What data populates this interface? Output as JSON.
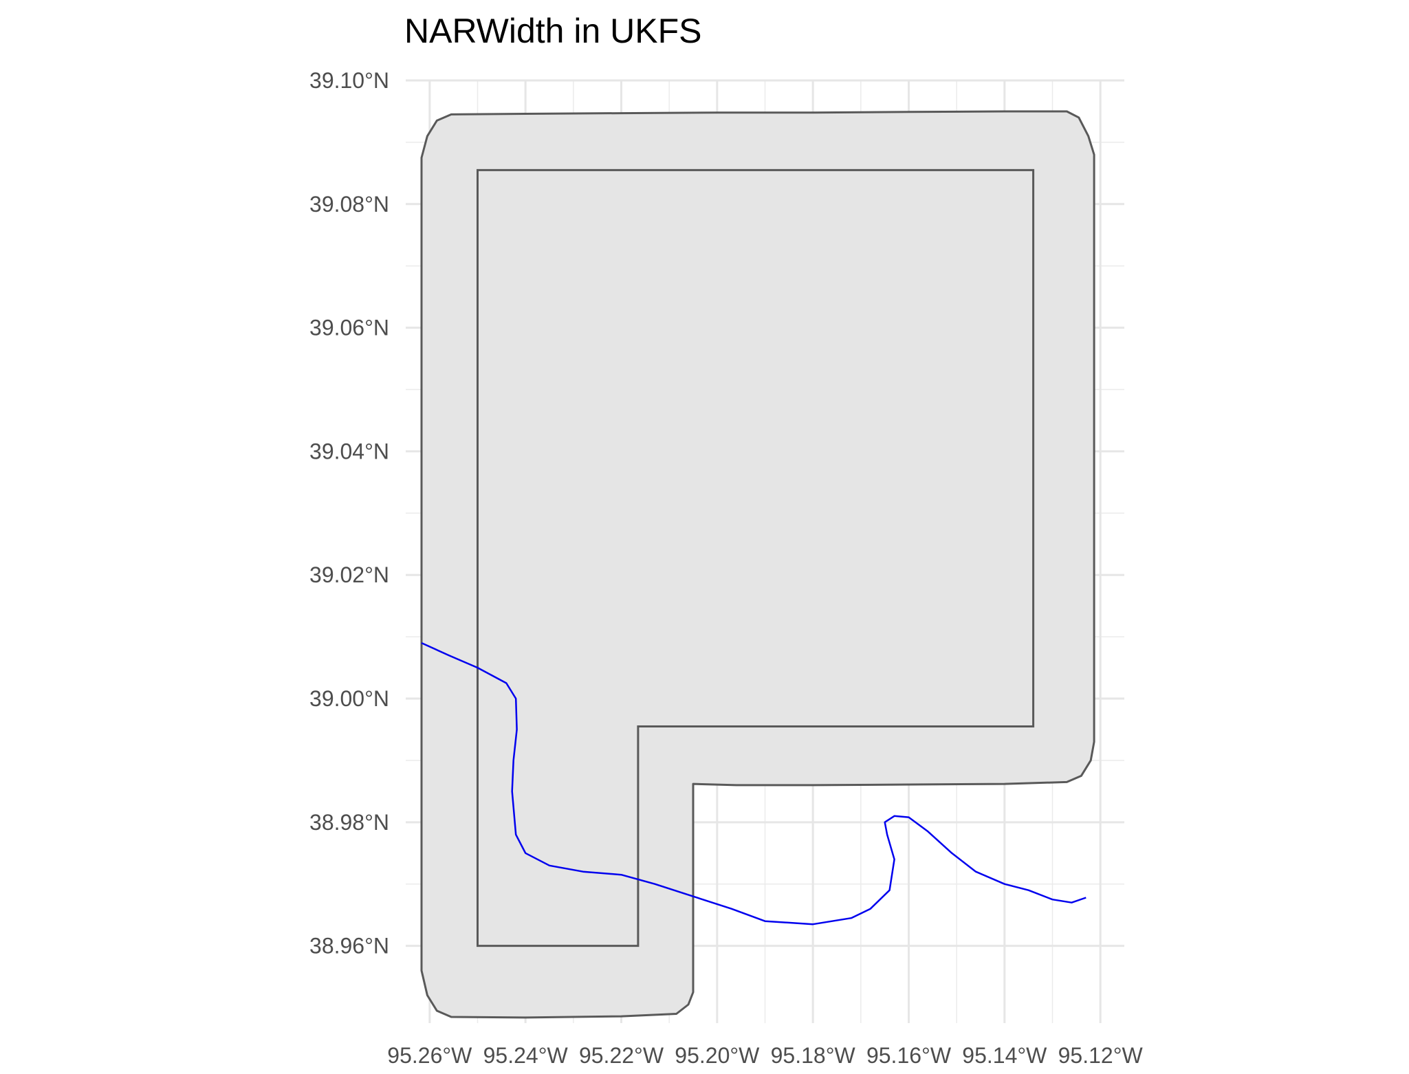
{
  "chart_data": {
    "type": "map",
    "title": "NARWidth in UKFS",
    "xlabel": "",
    "ylabel": "",
    "xlim": [
      -95.265,
      -95.115
    ],
    "ylim": [
      38.9475,
      39.1
    ],
    "grid": true,
    "x_ticks": [
      {
        "value": -95.26,
        "label": "95.26°W"
      },
      {
        "value": -95.24,
        "label": "95.24°W"
      },
      {
        "value": -95.22,
        "label": "95.22°W"
      },
      {
        "value": -95.2,
        "label": "95.20°W"
      },
      {
        "value": -95.18,
        "label": "95.18°W"
      },
      {
        "value": -95.16,
        "label": "95.16°W"
      },
      {
        "value": -95.14,
        "label": "95.14°W"
      },
      {
        "value": -95.12,
        "label": "95.12°W"
      }
    ],
    "y_ticks": [
      {
        "value": 39.1,
        "label": "39.10°N"
      },
      {
        "value": 39.08,
        "label": "39.08°N"
      },
      {
        "value": 39.06,
        "label": "39.06°N"
      },
      {
        "value": 39.04,
        "label": "39.04°N"
      },
      {
        "value": 39.02,
        "label": "39.02°N"
      },
      {
        "value": 39.0,
        "label": "39.00°N"
      },
      {
        "value": 38.98,
        "label": "38.98°N"
      },
      {
        "value": 38.96,
        "label": "38.96°N"
      }
    ],
    "buffer_polygon": {
      "fill": "#e5e5e5",
      "stroke": "#595959",
      "coords": [
        [
          -95.2617,
          39.0875
        ],
        [
          -95.2605,
          39.091
        ],
        [
          -95.2585,
          39.0935
        ],
        [
          -95.2555,
          39.0945
        ],
        [
          -95.24,
          39.0946
        ],
        [
          -95.22,
          39.0947
        ],
        [
          -95.2,
          39.0948
        ],
        [
          -95.18,
          39.0948
        ],
        [
          -95.16,
          39.0949
        ],
        [
          -95.14,
          39.095
        ],
        [
          -95.127,
          39.095
        ],
        [
          -95.1245,
          39.094
        ],
        [
          -95.1225,
          39.091
        ],
        [
          -95.1213,
          39.088
        ],
        [
          -95.1213,
          38.993
        ],
        [
          -95.122,
          38.99
        ],
        [
          -95.124,
          38.9875
        ],
        [
          -95.127,
          38.9865
        ],
        [
          -95.14,
          38.9862
        ],
        [
          -95.16,
          38.9861
        ],
        [
          -95.18,
          38.986
        ],
        [
          -95.196,
          38.986
        ],
        [
          -95.205,
          38.9862
        ],
        [
          -95.205,
          38.9525
        ],
        [
          -95.206,
          38.9505
        ],
        [
          -95.2085,
          38.949
        ],
        [
          -95.22,
          38.9486
        ],
        [
          -95.24,
          38.9484
        ],
        [
          -95.2555,
          38.9485
        ],
        [
          -95.2585,
          38.9495
        ],
        [
          -95.2605,
          38.952
        ],
        [
          -95.2617,
          38.956
        ]
      ]
    },
    "region_polygon": {
      "fill": "none",
      "stroke": "#595959",
      "coords": [
        [
          -95.25,
          39.0855
        ],
        [
          -95.134,
          39.0855
        ],
        [
          -95.134,
          38.9955
        ],
        [
          -95.2165,
          38.9955
        ],
        [
          -95.2165,
          38.96
        ],
        [
          -95.25,
          38.96
        ]
      ]
    },
    "river": {
      "color": "#0000ee",
      "coords": [
        [
          -95.2617,
          39.009
        ],
        [
          -95.256,
          39.007
        ],
        [
          -95.25,
          39.005
        ],
        [
          -95.244,
          39.0025
        ],
        [
          -95.242,
          39.0
        ],
        [
          -95.2418,
          38.995
        ],
        [
          -95.2425,
          38.99
        ],
        [
          -95.2428,
          38.985
        ],
        [
          -95.242,
          38.978
        ],
        [
          -95.24,
          38.975
        ],
        [
          -95.235,
          38.973
        ],
        [
          -95.228,
          38.972
        ],
        [
          -95.22,
          38.9715
        ],
        [
          -95.213,
          38.97
        ],
        [
          -95.205,
          38.968
        ],
        [
          -95.197,
          38.966
        ],
        [
          -95.19,
          38.964
        ],
        [
          -95.18,
          38.9635
        ],
        [
          -95.172,
          38.9645
        ],
        [
          -95.168,
          38.966
        ],
        [
          -95.164,
          38.969
        ],
        [
          -95.163,
          38.974
        ],
        [
          -95.1645,
          38.978
        ],
        [
          -95.165,
          38.98
        ],
        [
          -95.163,
          38.981
        ],
        [
          -95.16,
          38.9808
        ],
        [
          -95.156,
          38.9785
        ],
        [
          -95.151,
          38.975
        ],
        [
          -95.146,
          38.972
        ],
        [
          -95.14,
          38.97
        ],
        [
          -95.135,
          38.969
        ],
        [
          -95.13,
          38.9675
        ],
        [
          -95.126,
          38.967
        ],
        [
          -95.123,
          38.9678
        ]
      ]
    }
  }
}
